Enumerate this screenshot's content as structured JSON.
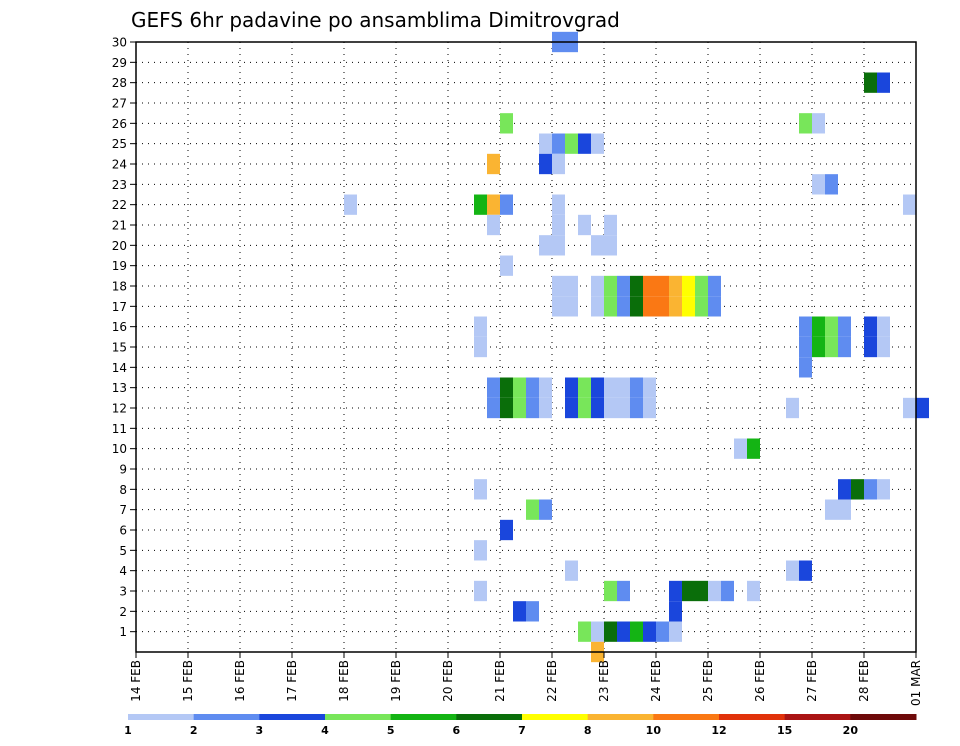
{
  "chart_data": {
    "type": "heatmap",
    "title": "GEFS 6hr padavine po ansamblima Dimitrovgrad",
    "xlabel": "",
    "ylabel": "",
    "x_tick_labels": [
      "14 FEB",
      "15 FEB",
      "16 FEB",
      "17 FEB",
      "18 FEB",
      "19 FEB",
      "20 FEB",
      "21 FEB",
      "22 FEB",
      "23 FEB",
      "24 FEB",
      "25 FEB",
      "26 FEB",
      "27 FEB",
      "28 FEB",
      "01 MAR"
    ],
    "x_range_days": [
      0,
      15
    ],
    "step_hours": 6,
    "y_tick_labels": [
      "1",
      "2",
      "3",
      "4",
      "5",
      "6",
      "7",
      "8",
      "9",
      "10",
      "11",
      "12",
      "13",
      "14",
      "15",
      "16",
      "17",
      "18",
      "19",
      "20",
      "21",
      "22",
      "23",
      "24",
      "25",
      "26",
      "27",
      "28",
      "29",
      "30"
    ],
    "y_range": [
      0,
      30
    ],
    "grid": true,
    "colorbar": {
      "labels": [
        "1",
        "2",
        "3",
        "4",
        "5",
        "6",
        "7",
        "8",
        "10",
        "12",
        "15",
        "20"
      ],
      "colors": [
        "#b4c8f5",
        "#5f8cf0",
        "#1a46dc",
        "#78e65a",
        "#14b414",
        "#0a6e0a",
        "#ffff00",
        "#fab432",
        "#fa7814",
        "#e1320a",
        "#aa1414",
        "#6e0a0a"
      ]
    },
    "cells": [
      {
        "member": 30,
        "day": 8.0,
        "level": 2
      },
      {
        "member": 30,
        "day": 8.25,
        "level": 2
      },
      {
        "member": 28,
        "day": 14.0,
        "level": 6
      },
      {
        "member": 28,
        "day": 14.25,
        "level": 3
      },
      {
        "member": 26,
        "day": 7.0,
        "level": 4
      },
      {
        "member": 26,
        "day": 12.75,
        "level": 4
      },
      {
        "member": 26,
        "day": 13.0,
        "level": 1
      },
      {
        "member": 25,
        "day": 7.75,
        "level": 1
      },
      {
        "member": 25,
        "day": 8.0,
        "level": 2
      },
      {
        "member": 25,
        "day": 8.25,
        "level": 4
      },
      {
        "member": 25,
        "day": 8.5,
        "level": 3
      },
      {
        "member": 25,
        "day": 8.75,
        "level": 1
      },
      {
        "member": 24,
        "day": 6.75,
        "level": 8
      },
      {
        "member": 24,
        "day": 7.75,
        "level": 3
      },
      {
        "member": 24,
        "day": 8.0,
        "level": 1
      },
      {
        "member": 23,
        "day": 13.0,
        "level": 1
      },
      {
        "member": 23,
        "day": 13.25,
        "level": 2
      },
      {
        "member": 22,
        "day": 4.0,
        "level": 1
      },
      {
        "member": 22,
        "day": 6.5,
        "level": 5
      },
      {
        "member": 22,
        "day": 6.75,
        "level": 8
      },
      {
        "member": 22,
        "day": 7.0,
        "level": 2
      },
      {
        "member": 22,
        "day": 8.0,
        "level": 1
      },
      {
        "member": 22,
        "day": 14.75,
        "level": 1
      },
      {
        "member": 21,
        "day": 6.75,
        "level": 1
      },
      {
        "member": 21,
        "day": 8.0,
        "level": 1
      },
      {
        "member": 21,
        "day": 8.5,
        "level": 1
      },
      {
        "member": 21,
        "day": 9.0,
        "level": 1
      },
      {
        "member": 20,
        "day": 7.75,
        "level": 1
      },
      {
        "member": 20,
        "day": 8.0,
        "level": 1
      },
      {
        "member": 20,
        "day": 8.75,
        "level": 1
      },
      {
        "member": 20,
        "day": 9.0,
        "level": 1
      },
      {
        "member": 19,
        "day": 7.0,
        "level": 1
      },
      {
        "member": 18,
        "day": 8.0,
        "level": 1
      },
      {
        "member": 18,
        "day": 8.25,
        "level": 1
      },
      {
        "member": 18,
        "day": 8.75,
        "level": 1
      },
      {
        "member": 18,
        "day": 9.0,
        "level": 4
      },
      {
        "member": 18,
        "day": 9.25,
        "level": 2
      },
      {
        "member": 18,
        "day": 9.5,
        "level": 6
      },
      {
        "member": 18,
        "day": 9.75,
        "level": 9
      },
      {
        "member": 18,
        "day": 10.0,
        "level": 9
      },
      {
        "member": 18,
        "day": 10.25,
        "level": 8
      },
      {
        "member": 18,
        "day": 10.5,
        "level": 7
      },
      {
        "member": 18,
        "day": 10.75,
        "level": 4
      },
      {
        "member": 18,
        "day": 11.0,
        "level": 2
      },
      {
        "member": 17,
        "day": 8.0,
        "level": 1
      },
      {
        "member": 17,
        "day": 8.25,
        "level": 1
      },
      {
        "member": 17,
        "day": 8.75,
        "level": 1
      },
      {
        "member": 17,
        "day": 9.0,
        "level": 4
      },
      {
        "member": 17,
        "day": 9.25,
        "level": 2
      },
      {
        "member": 17,
        "day": 9.5,
        "level": 6
      },
      {
        "member": 17,
        "day": 9.75,
        "level": 9
      },
      {
        "member": 17,
        "day": 10.0,
        "level": 9
      },
      {
        "member": 17,
        "day": 10.25,
        "level": 8
      },
      {
        "member": 17,
        "day": 10.5,
        "level": 7
      },
      {
        "member": 17,
        "day": 10.75,
        "level": 4
      },
      {
        "member": 17,
        "day": 11.0,
        "level": 2
      },
      {
        "member": 16,
        "day": 6.5,
        "level": 1
      },
      {
        "member": 16,
        "day": 12.75,
        "level": 2
      },
      {
        "member": 16,
        "day": 13.0,
        "level": 5
      },
      {
        "member": 16,
        "day": 13.25,
        "level": 4
      },
      {
        "member": 16,
        "day": 13.5,
        "level": 2
      },
      {
        "member": 16,
        "day": 14.0,
        "level": 3
      },
      {
        "member": 16,
        "day": 14.25,
        "level": 1
      },
      {
        "member": 15,
        "day": 6.5,
        "level": 1
      },
      {
        "member": 15,
        "day": 12.75,
        "level": 2
      },
      {
        "member": 15,
        "day": 13.0,
        "level": 5
      },
      {
        "member": 15,
        "day": 13.25,
        "level": 4
      },
      {
        "member": 15,
        "day": 13.5,
        "level": 2
      },
      {
        "member": 15,
        "day": 14.0,
        "level": 3
      },
      {
        "member": 15,
        "day": 14.25,
        "level": 1
      },
      {
        "member": 14,
        "day": 12.75,
        "level": 2
      },
      {
        "member": 13,
        "day": 6.75,
        "level": 2
      },
      {
        "member": 13,
        "day": 7.0,
        "level": 6
      },
      {
        "member": 13,
        "day": 7.25,
        "level": 4
      },
      {
        "member": 13,
        "day": 7.5,
        "level": 2
      },
      {
        "member": 13,
        "day": 7.75,
        "level": 1
      },
      {
        "member": 13,
        "day": 8.25,
        "level": 3
      },
      {
        "member": 13,
        "day": 8.5,
        "level": 4
      },
      {
        "member": 13,
        "day": 8.75,
        "level": 3
      },
      {
        "member": 13,
        "day": 9.0,
        "level": 1
      },
      {
        "member": 13,
        "day": 9.25,
        "level": 1
      },
      {
        "member": 13,
        "day": 9.5,
        "level": 2
      },
      {
        "member": 13,
        "day": 9.75,
        "level": 1
      },
      {
        "member": 12,
        "day": 6.75,
        "level": 2
      },
      {
        "member": 12,
        "day": 7.0,
        "level": 6
      },
      {
        "member": 12,
        "day": 7.25,
        "level": 4
      },
      {
        "member": 12,
        "day": 7.5,
        "level": 2
      },
      {
        "member": 12,
        "day": 7.75,
        "level": 1
      },
      {
        "member": 12,
        "day": 8.25,
        "level": 3
      },
      {
        "member": 12,
        "day": 8.5,
        "level": 4
      },
      {
        "member": 12,
        "day": 8.75,
        "level": 3
      },
      {
        "member": 12,
        "day": 9.0,
        "level": 1
      },
      {
        "member": 12,
        "day": 9.25,
        "level": 1
      },
      {
        "member": 12,
        "day": 9.5,
        "level": 2
      },
      {
        "member": 12,
        "day": 9.75,
        "level": 1
      },
      {
        "member": 12,
        "day": 12.5,
        "level": 1
      },
      {
        "member": 12,
        "day": 14.75,
        "level": 1
      },
      {
        "member": 12,
        "day": 15.0,
        "level": 3
      },
      {
        "member": 10,
        "day": 11.5,
        "level": 1
      },
      {
        "member": 10,
        "day": 11.75,
        "level": 5
      },
      {
        "member": 8,
        "day": 6.5,
        "level": 1
      },
      {
        "member": 8,
        "day": 13.5,
        "level": 3
      },
      {
        "member": 8,
        "day": 13.75,
        "level": 6
      },
      {
        "member": 8,
        "day": 14.0,
        "level": 2
      },
      {
        "member": 8,
        "day": 14.25,
        "level": 1
      },
      {
        "member": 7,
        "day": 7.5,
        "level": 4
      },
      {
        "member": 7,
        "day": 7.75,
        "level": 2
      },
      {
        "member": 7,
        "day": 13.25,
        "level": 1
      },
      {
        "member": 7,
        "day": 13.5,
        "level": 1
      },
      {
        "member": 6,
        "day": 7.0,
        "level": 3
      },
      {
        "member": 5,
        "day": 6.5,
        "level": 1
      },
      {
        "member": 4,
        "day": 8.25,
        "level": 1
      },
      {
        "member": 4,
        "day": 12.5,
        "level": 1
      },
      {
        "member": 4,
        "day": 12.75,
        "level": 3
      },
      {
        "member": 3,
        "day": 6.5,
        "level": 1
      },
      {
        "member": 3,
        "day": 9.0,
        "level": 4
      },
      {
        "member": 3,
        "day": 9.25,
        "level": 2
      },
      {
        "member": 3,
        "day": 10.25,
        "level": 3
      },
      {
        "member": 3,
        "day": 10.5,
        "level": 6
      },
      {
        "member": 3,
        "day": 10.75,
        "level": 6
      },
      {
        "member": 3,
        "day": 11.0,
        "level": 1
      },
      {
        "member": 3,
        "day": 11.25,
        "level": 2
      },
      {
        "member": 3,
        "day": 11.75,
        "level": 1
      },
      {
        "member": 2,
        "day": 7.25,
        "level": 3
      },
      {
        "member": 2,
        "day": 7.5,
        "level": 2
      },
      {
        "member": 2,
        "day": 10.25,
        "level": 3
      },
      {
        "member": 1,
        "day": 8.5,
        "level": 4
      },
      {
        "member": 1,
        "day": 8.75,
        "level": 1
      },
      {
        "member": 1,
        "day": 9.0,
        "level": 6
      },
      {
        "member": 1,
        "day": 9.25,
        "level": 3
      },
      {
        "member": 1,
        "day": 9.5,
        "level": 5
      },
      {
        "member": 1,
        "day": 9.75,
        "level": 3
      },
      {
        "member": 1,
        "day": 10.0,
        "level": 2
      },
      {
        "member": 1,
        "day": 10.25,
        "level": 1
      },
      {
        "member": 0,
        "day": 8.75,
        "level": 8
      }
    ]
  }
}
